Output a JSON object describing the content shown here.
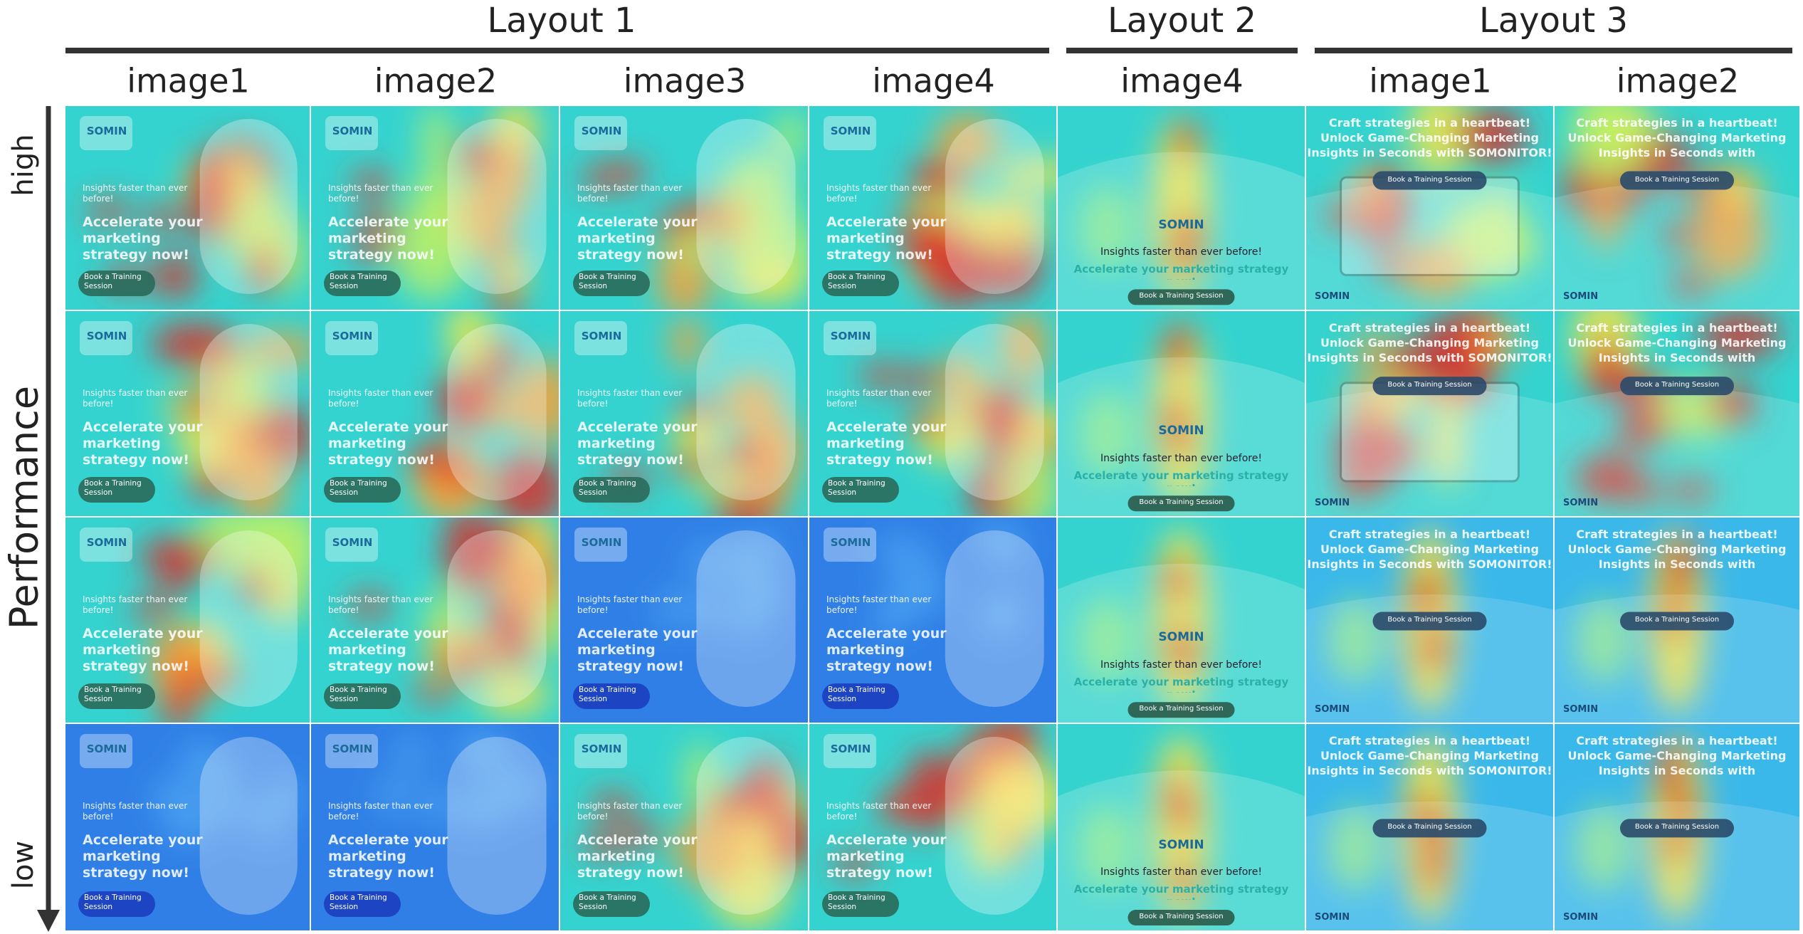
{
  "header": {
    "layouts": [
      {
        "title": "Layout 1",
        "images": [
          "image1",
          "image2",
          "image3",
          "image4"
        ]
      },
      {
        "title": "Layout 2",
        "images": [
          "image4"
        ]
      },
      {
        "title": "Layout 3",
        "images": [
          "image1",
          "image2"
        ]
      }
    ]
  },
  "axis": {
    "high": "high",
    "label": "Performance",
    "low": "low"
  },
  "ads": [
    {
      "logo": "SOMIN",
      "tagline": "Insights faster than ever before!",
      "headline": "Accelerate your marketing strategy now!",
      "button": "Book a Training Session"
    },
    {
      "logo": "SOMIN",
      "tagline": "Insights faster than ever before!",
      "headline": "Accelerate your marketing strategy now!",
      "button": "Book a Training Session"
    },
    {
      "lines": [
        "Craft strategies in a heartbeat!",
        "Unlock Game-Changing Marketing",
        "Insights in Seconds with SOMONITOR!"
      ],
      "button": "Book a Training Session",
      "logo": "SOMIN"
    }
  ]
}
